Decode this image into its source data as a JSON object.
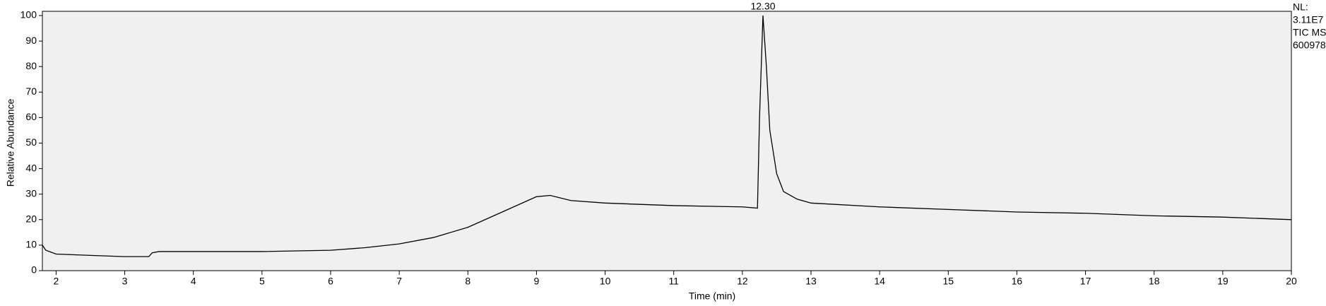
{
  "chart_data": {
    "type": "line",
    "xlabel": "Time (min)",
    "ylabel": "Relative Abundance",
    "annotations": [
      {
        "x": 12.3,
        "y": 100,
        "text": "12.30"
      }
    ],
    "info": [
      "NL:",
      "3.11E7",
      "TIC  MS",
      "600978"
    ],
    "x": [
      1.8,
      1.85,
      2,
      2.5,
      3,
      3.35,
      3.4,
      3.5,
      4,
      5,
      6,
      6.5,
      7,
      7.5,
      8,
      8.5,
      9,
      9.2,
      9.5,
      10,
      11,
      12,
      12.22,
      12.25,
      12.3,
      12.35,
      12.4,
      12.5,
      12.6,
      12.8,
      13,
      14,
      15,
      16,
      17,
      18,
      19,
      20
    ],
    "series": [
      {
        "name": "TIC",
        "color": "#000000",
        "values": [
          10,
          8,
          6.5,
          6,
          5.5,
          5.5,
          7,
          7.5,
          7.5,
          7.5,
          8,
          9,
          10.5,
          13,
          17,
          23,
          29,
          29.5,
          27.5,
          26.5,
          25.5,
          25,
          24.5,
          60,
          100,
          80,
          55,
          38,
          31,
          28,
          26.5,
          25,
          24,
          23,
          22.5,
          21.5,
          21,
          20
        ]
      }
    ],
    "xlim": [
      1.8,
      20
    ],
    "xticks": [
      2,
      3,
      4,
      5,
      6,
      7,
      8,
      9,
      10,
      11,
      12,
      13,
      14,
      15,
      16,
      17,
      18,
      19,
      20
    ],
    "ylim": [
      0,
      100
    ],
    "yticks": [
      0,
      10,
      20,
      30,
      40,
      50,
      60,
      70,
      80,
      90,
      100
    ]
  }
}
